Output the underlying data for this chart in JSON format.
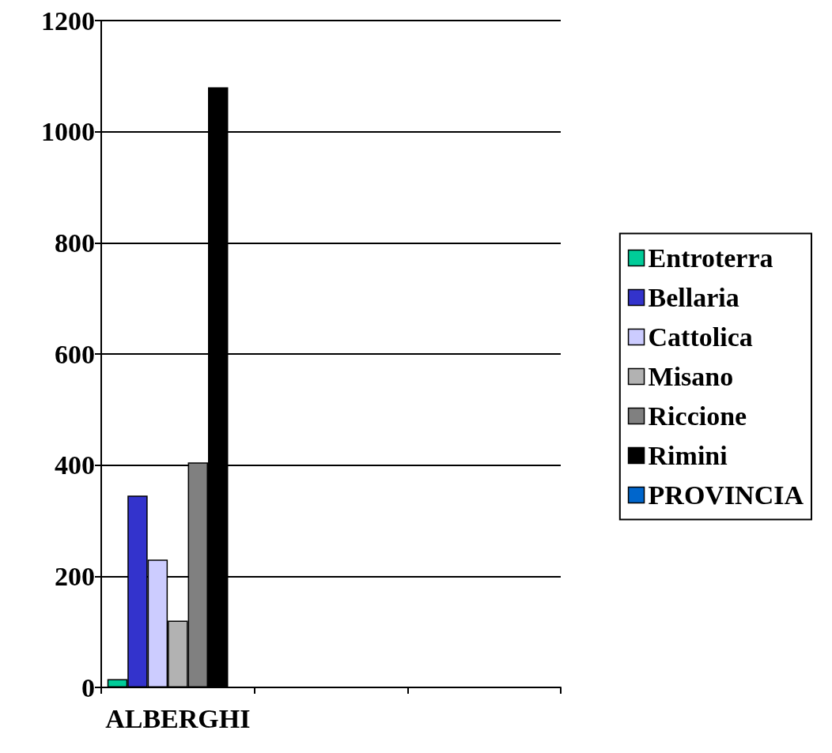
{
  "chart_data": {
    "type": "bar",
    "categories": [
      "ALBERGHI",
      null,
      null
    ],
    "series": [
      {
        "name": "Entroterra",
        "color": "#00cc99",
        "values": [
          15,
          null,
          null
        ]
      },
      {
        "name": "Bellaria",
        "color": "#3333cc",
        "values": [
          345,
          null,
          null
        ]
      },
      {
        "name": "Cattolica",
        "color": "#ccccff",
        "values": [
          230,
          null,
          null
        ]
      },
      {
        "name": "Misano",
        "color": "#b2b2b2",
        "values": [
          120,
          null,
          null
        ]
      },
      {
        "name": "Riccione",
        "color": "#808080",
        "values": [
          405,
          null,
          null
        ]
      },
      {
        "name": "Rimini",
        "color": "#000000",
        "values": [
          1080,
          null,
          null
        ]
      },
      {
        "name": "PROVINCIA",
        "color": "#0066cc",
        "values": [
          null,
          null,
          null
        ]
      }
    ],
    "ylim": [
      0,
      1200
    ],
    "yticks": [
      0,
      200,
      400,
      600,
      800,
      1000,
      1200
    ],
    "grid": "y",
    "legend": "right"
  }
}
